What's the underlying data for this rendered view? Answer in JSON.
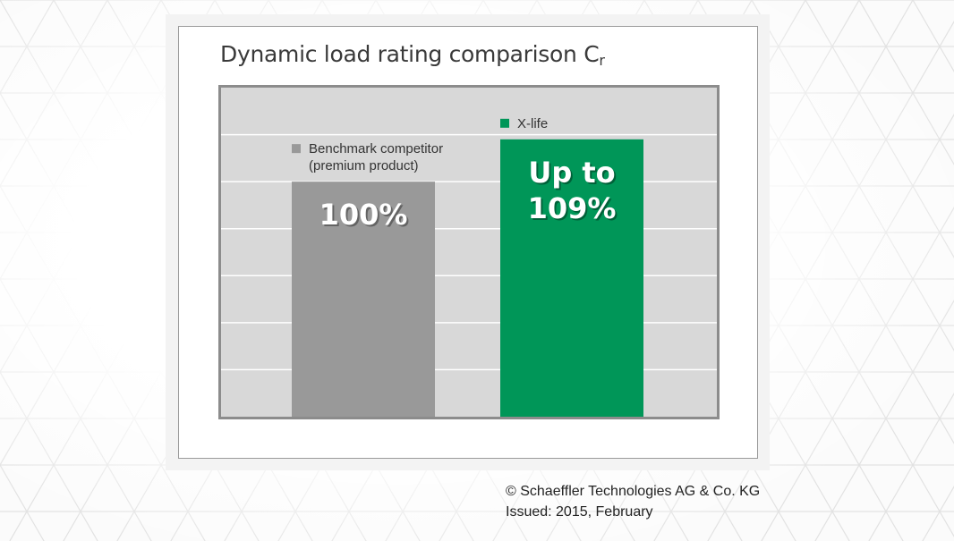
{
  "chart_data": {
    "type": "bar",
    "title": "Dynamic load rating comparison C",
    "title_subscript": "r",
    "categories": [
      "Benchmark competitor (premium product)",
      "X-life"
    ],
    "series": [
      {
        "name": "Benchmark competitor",
        "legend_label_lines": [
          "Benchmark competitor",
          "(premium product)"
        ],
        "category": "Benchmark competitor (premium product)",
        "value": 100,
        "label_lines": [
          "100%"
        ],
        "color": "#999999"
      },
      {
        "name": "X-life",
        "legend_label_lines": [
          "X-life"
        ],
        "category": "X-life",
        "value": 109,
        "label_lines": [
          "Up to",
          "109%"
        ],
        "color": "#009658"
      }
    ],
    "ylim": [
      50,
      120
    ],
    "xlabel": "",
    "ylabel": "",
    "grid": true,
    "background": "#d8d8d8"
  },
  "footer": {
    "copyright": "© Schaeffler Technologies AG & Co. KG",
    "issued": "Issued: 2015, February"
  }
}
